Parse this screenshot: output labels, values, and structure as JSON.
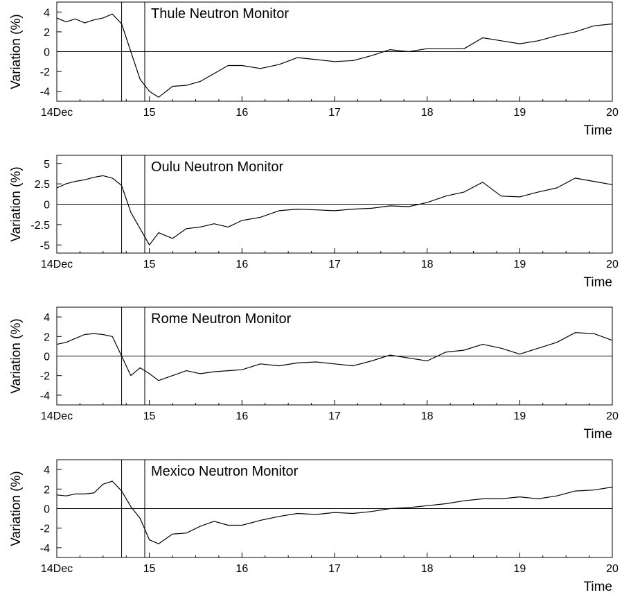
{
  "chart_data": [
    {
      "type": "line",
      "title": "Thule Neutron Monitor",
      "xlabel": "Time",
      "ylabel": "Variation (%)",
      "x_ticks": [
        "14Dec",
        "15",
        "16",
        "17",
        "18",
        "19",
        "20"
      ],
      "y_ticks": [
        "4",
        "2",
        "0",
        "-2",
        "-4"
      ],
      "xlim": [
        14,
        20
      ],
      "ylim": [
        -5,
        5
      ],
      "markers": [
        14.7,
        14.95
      ],
      "grid": false,
      "series": [
        {
          "x": [
            14.0,
            14.1,
            14.2,
            14.3,
            14.4,
            14.5,
            14.6,
            14.7,
            14.8,
            14.9,
            15.0,
            15.1,
            15.25,
            15.4,
            15.55,
            15.7,
            15.85,
            16.0,
            16.2,
            16.4,
            16.6,
            16.8,
            17.0,
            17.2,
            17.4,
            17.6,
            17.8,
            18.0,
            18.2,
            18.4,
            18.6,
            18.8,
            19.0,
            19.2,
            19.4,
            19.6,
            19.8,
            20.0
          ],
          "y": [
            3.4,
            3.0,
            3.3,
            2.9,
            3.2,
            3.4,
            3.8,
            2.8,
            0.0,
            -2.8,
            -4.0,
            -4.6,
            -3.5,
            -3.4,
            -3.0,
            -2.2,
            -1.4,
            -1.4,
            -1.7,
            -1.3,
            -0.6,
            -0.8,
            -1.0,
            -0.9,
            -0.4,
            0.2,
            0.0,
            0.3,
            0.3,
            0.3,
            1.4,
            1.1,
            0.8,
            1.1,
            1.6,
            2.0,
            2.6,
            2.8
          ]
        }
      ]
    },
    {
      "type": "line",
      "title": "Oulu Neutron Monitor",
      "xlabel": "Time",
      "ylabel": "Variation (%)",
      "x_ticks": [
        "14Dec",
        "15",
        "16",
        "17",
        "18",
        "19",
        "20"
      ],
      "y_ticks": [
        "5",
        "2.5",
        "0",
        "-2.5",
        "-5"
      ],
      "xlim": [
        14,
        20
      ],
      "ylim": [
        -6,
        6
      ],
      "markers": [
        14.7,
        14.95
      ],
      "grid": false,
      "series": [
        {
          "x": [
            14.0,
            14.1,
            14.2,
            14.3,
            14.4,
            14.5,
            14.6,
            14.7,
            14.8,
            14.9,
            15.0,
            15.1,
            15.25,
            15.4,
            15.55,
            15.7,
            15.85,
            16.0,
            16.2,
            16.4,
            16.6,
            16.8,
            17.0,
            17.2,
            17.4,
            17.6,
            17.8,
            18.0,
            18.2,
            18.4,
            18.6,
            18.8,
            19.0,
            19.2,
            19.4,
            19.6,
            19.8,
            20.0
          ],
          "y": [
            2.0,
            2.5,
            2.8,
            3.0,
            3.3,
            3.5,
            3.2,
            2.3,
            -1.0,
            -3.0,
            -5.0,
            -3.5,
            -4.2,
            -3.0,
            -2.8,
            -2.4,
            -2.8,
            -2.0,
            -1.6,
            -0.8,
            -0.6,
            -0.7,
            -0.8,
            -0.6,
            -0.5,
            -0.2,
            -0.3,
            0.2,
            1.0,
            1.5,
            2.7,
            1.0,
            0.9,
            1.5,
            2.0,
            3.2,
            2.8,
            2.4
          ]
        }
      ]
    },
    {
      "type": "line",
      "title": "Rome Neutron Monitor",
      "xlabel": "Time",
      "ylabel": "Variation (%)",
      "x_ticks": [
        "14Dec",
        "15",
        "16",
        "17",
        "18",
        "19",
        "20"
      ],
      "y_ticks": [
        "4",
        "2",
        "0",
        "-2",
        "-4"
      ],
      "xlim": [
        14,
        20
      ],
      "ylim": [
        -5,
        5
      ],
      "markers": [
        14.7,
        14.95
      ],
      "grid": false,
      "series": [
        {
          "x": [
            14.0,
            14.1,
            14.2,
            14.3,
            14.4,
            14.5,
            14.6,
            14.7,
            14.8,
            14.9,
            15.0,
            15.1,
            15.25,
            15.4,
            15.55,
            15.7,
            15.85,
            16.0,
            16.2,
            16.4,
            16.6,
            16.8,
            17.0,
            17.2,
            17.4,
            17.6,
            17.8,
            18.0,
            18.2,
            18.4,
            18.6,
            18.8,
            19.0,
            19.2,
            19.4,
            19.6,
            19.8,
            20.0
          ],
          "y": [
            1.2,
            1.4,
            1.8,
            2.2,
            2.3,
            2.2,
            2.0,
            0.0,
            -2.0,
            -1.2,
            -1.8,
            -2.5,
            -2.0,
            -1.5,
            -1.8,
            -1.6,
            -1.5,
            -1.4,
            -0.8,
            -1.0,
            -0.7,
            -0.6,
            -0.8,
            -1.0,
            -0.5,
            0.1,
            -0.2,
            -0.5,
            0.4,
            0.6,
            1.2,
            0.8,
            0.2,
            0.8,
            1.4,
            2.4,
            2.3,
            1.6
          ]
        }
      ]
    },
    {
      "type": "line",
      "title": "Mexico Neutron Monitor",
      "xlabel": "Time",
      "ylabel": "Variation (%)",
      "x_ticks": [
        "14Dec",
        "15",
        "16",
        "17",
        "18",
        "19",
        "20"
      ],
      "y_ticks": [
        "4",
        "2",
        "0",
        "-2",
        "-4"
      ],
      "xlim": [
        14,
        20
      ],
      "ylim": [
        -5,
        5
      ],
      "markers": [
        14.7,
        14.95
      ],
      "grid": false,
      "series": [
        {
          "x": [
            14.0,
            14.1,
            14.2,
            14.3,
            14.4,
            14.5,
            14.6,
            14.7,
            14.8,
            14.9,
            15.0,
            15.1,
            15.25,
            15.4,
            15.55,
            15.7,
            15.85,
            16.0,
            16.2,
            16.4,
            16.6,
            16.8,
            17.0,
            17.2,
            17.4,
            17.6,
            17.8,
            18.0,
            18.2,
            18.4,
            18.6,
            18.8,
            19.0,
            19.2,
            19.4,
            19.6,
            19.8,
            20.0
          ],
          "y": [
            1.4,
            1.3,
            1.5,
            1.5,
            1.6,
            2.5,
            2.8,
            1.8,
            0.2,
            -1.0,
            -3.2,
            -3.6,
            -2.6,
            -2.5,
            -1.8,
            -1.3,
            -1.7,
            -1.7,
            -1.2,
            -0.8,
            -0.5,
            -0.6,
            -0.4,
            -0.5,
            -0.3,
            0.0,
            0.1,
            0.3,
            0.5,
            0.8,
            1.0,
            1.0,
            1.2,
            1.0,
            1.3,
            1.8,
            1.9,
            2.2
          ]
        }
      ]
    }
  ]
}
